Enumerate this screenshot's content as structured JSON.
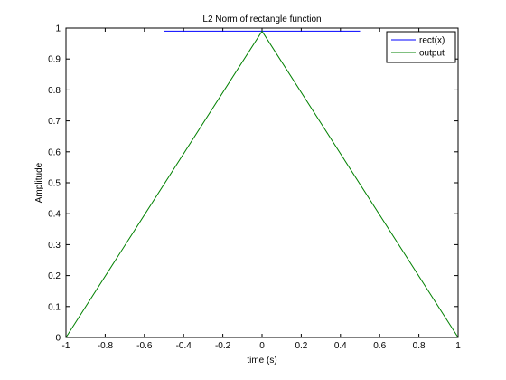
{
  "chart_data": {
    "type": "line",
    "title": "L2 Norm of rectangle function",
    "xlabel": "time (s)",
    "ylabel": "Amplitude",
    "xlim": [
      -1,
      1
    ],
    "ylim": [
      0,
      1
    ],
    "xticks": [
      "-1",
      "-0.8",
      "-0.6",
      "-0.4",
      "-0.2",
      "0",
      "0.2",
      "0.4",
      "0.6",
      "0.8",
      "1"
    ],
    "xtick_values": [
      -1,
      -0.8,
      -0.6,
      -0.4,
      -0.2,
      0,
      0.2,
      0.4,
      0.6,
      0.8,
      1
    ],
    "yticks": [
      "0",
      "0.1",
      "0.2",
      "0.3",
      "0.4",
      "0.5",
      "0.6",
      "0.7",
      "0.8",
      "0.9",
      "1"
    ],
    "ytick_values": [
      0,
      0.1,
      0.2,
      0.3,
      0.4,
      0.5,
      0.6,
      0.7,
      0.8,
      0.9,
      1
    ],
    "grid": false,
    "legend_position": "top-right",
    "series": [
      {
        "name": "rect(x)",
        "color": "#0000ff",
        "x": [
          -0.5,
          0.5
        ],
        "y": [
          0.99,
          0.99
        ]
      },
      {
        "name": "output",
        "color": "#008000",
        "x": [
          -1,
          0,
          1
        ],
        "y": [
          0,
          0.99,
          0
        ]
      }
    ]
  }
}
